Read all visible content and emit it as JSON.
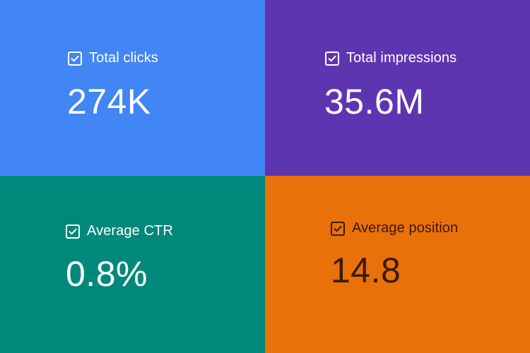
{
  "metrics": [
    {
      "label": "Total clicks",
      "value": "274K",
      "checked": true,
      "bg": "#4285F4",
      "fg": "#FFFFFF"
    },
    {
      "label": "Total impressions",
      "value": "35.6M",
      "checked": true,
      "bg": "#5E35B1",
      "fg": "#FFFFFF"
    },
    {
      "label": "Average CTR",
      "value": "0.8%",
      "checked": true,
      "bg": "#00897B",
      "fg": "#FFFFFF"
    },
    {
      "label": "Average position",
      "value": "14.8",
      "checked": true,
      "bg": "#E8710A",
      "fg": "#3A1A00"
    }
  ],
  "icons": {
    "checkbox": "checkbox-checked-icon"
  }
}
